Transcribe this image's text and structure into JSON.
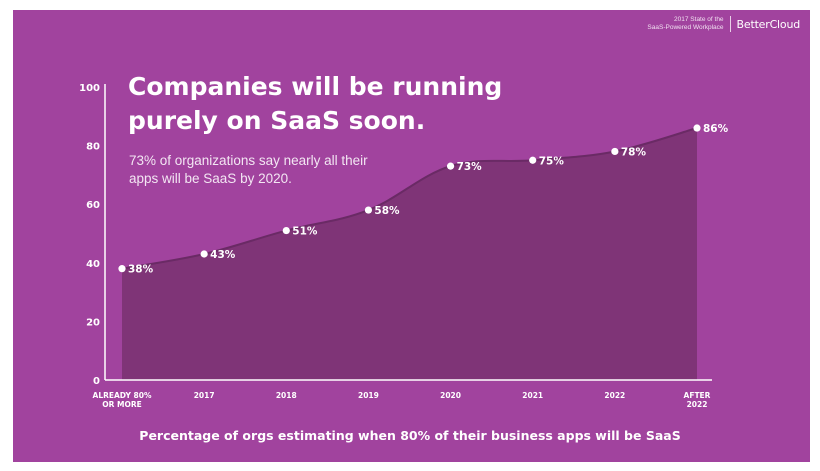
{
  "header": {
    "report_line1": "2017 State of the",
    "report_line2": "SaaS-Powered Workplace",
    "brand": "BetterCloud"
  },
  "chart_data": {
    "type": "area",
    "title_line1": "Companies will be running",
    "title_line2": "purely on SaaS soon.",
    "subtitle_line1": "73% of organizations say nearly all their",
    "subtitle_line2": "apps will be SaaS by 2020.",
    "xlabel": "Percentage of orgs estimating when 80% of their business apps will be SaaS",
    "ylabel": "",
    "ylim": [
      0,
      100
    ],
    "yticks": [
      0,
      20,
      40,
      60,
      80,
      100
    ],
    "categories": [
      [
        "ALREADY 80%",
        "OR MORE"
      ],
      [
        "2017"
      ],
      [
        "2018"
      ],
      [
        "2019"
      ],
      [
        "2020"
      ],
      [
        "2021"
      ],
      [
        "2022"
      ],
      [
        "AFTER",
        "2022"
      ]
    ],
    "values": [
      38,
      43,
      51,
      58,
      73,
      75,
      78,
      86
    ],
    "data_labels": [
      "38%",
      "43%",
      "51%",
      "58%",
      "73%",
      "75%",
      "78%",
      "86%"
    ],
    "colors": {
      "background": "#a1439e",
      "area": "#7f3477",
      "line": "#6a2a65",
      "text": "#ffffff"
    }
  }
}
